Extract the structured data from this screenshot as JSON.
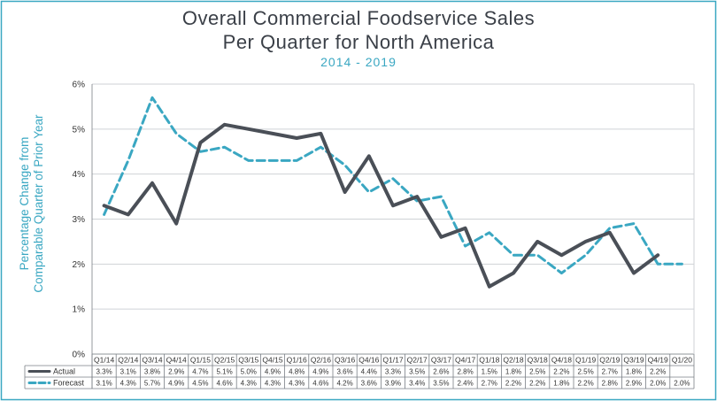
{
  "chart_data": {
    "type": "line",
    "title": "Overall Commercial Foodservice Sales",
    "title_line2": "Per Quarter for North America",
    "subtitle": "2014 - 2019",
    "ylabel_line1": "Percentage Change from",
    "ylabel_line2": "Comparable Quarter of Prior Year",
    "ylim": [
      0,
      6
    ],
    "yticks": [
      "0%",
      "1%",
      "2%",
      "3%",
      "4%",
      "5%",
      "6%"
    ],
    "grid": true,
    "legend": "data-table-bottom",
    "categories": [
      "Q1/14",
      "Q2/14",
      "Q3/14",
      "Q4/14",
      "Q1/15",
      "Q2/15",
      "Q3/15",
      "Q4/15",
      "Q1/16",
      "Q2/16",
      "Q3/16",
      "Q4/16",
      "Q1/17",
      "Q2/17",
      "Q3/17",
      "Q4/17",
      "Q1/18",
      "Q2/18",
      "Q3/18",
      "Q4/18",
      "Q1/19",
      "Q2/19",
      "Q3/19",
      "Q4/19",
      "Q1/20"
    ],
    "series": [
      {
        "name": "Actual",
        "color": "#4a4f57",
        "style": "solid",
        "values": [
          3.3,
          3.1,
          3.8,
          2.9,
          4.7,
          5.1,
          5.0,
          4.9,
          4.8,
          4.9,
          3.6,
          4.4,
          3.3,
          3.5,
          2.6,
          2.8,
          1.5,
          1.8,
          2.5,
          2.2,
          2.5,
          2.7,
          1.8,
          2.2,
          null
        ],
        "labels": [
          "3.3%",
          "3.1%",
          "3.8%",
          "2.9%",
          "4.7%",
          "5.1%",
          "5.0%",
          "4.9%",
          "4.8%",
          "4.9%",
          "3.6%",
          "4.4%",
          "3.3%",
          "3.5%",
          "2.6%",
          "2.8%",
          "1.5%",
          "1.8%",
          "2.5%",
          "2.2%",
          "2.5%",
          "2.7%",
          "1.8%",
          "2.2%",
          ""
        ]
      },
      {
        "name": "Forecast",
        "color": "#3aa7c2",
        "style": "dashed",
        "values": [
          3.1,
          4.3,
          5.7,
          4.9,
          4.5,
          4.6,
          4.3,
          4.3,
          4.3,
          4.6,
          4.2,
          3.6,
          3.9,
          3.4,
          3.5,
          2.4,
          2.7,
          2.2,
          2.2,
          1.8,
          2.2,
          2.8,
          2.9,
          2.0,
          2.0
        ],
        "labels": [
          "3.1%",
          "4.3%",
          "5.7%",
          "4.9%",
          "4.5%",
          "4.6%",
          "4.3%",
          "4.3%",
          "4.3%",
          "4.6%",
          "4.2%",
          "3.6%",
          "3.9%",
          "3.4%",
          "3.5%",
          "2.4%",
          "2.7%",
          "2.2%",
          "2.2%",
          "1.8%",
          "2.2%",
          "2.8%",
          "2.9%",
          "2.0%",
          "2.0%"
        ]
      }
    ]
  }
}
